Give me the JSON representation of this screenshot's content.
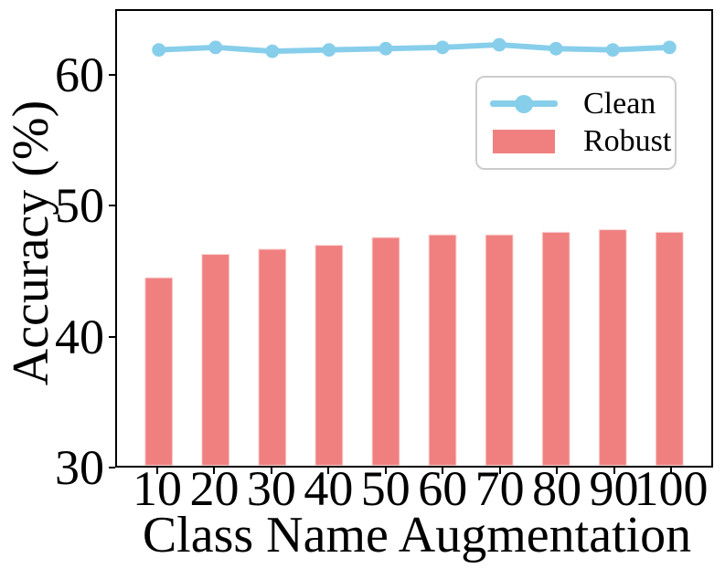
{
  "chart_data": {
    "type": "bar",
    "subtype": "bar-with-line-overlay",
    "categories": [
      10,
      20,
      30,
      40,
      50,
      60,
      70,
      80,
      90,
      100
    ],
    "series": [
      {
        "name": "Clean",
        "type": "line",
        "color": "#87CEEB",
        "values": [
          62.0,
          62.2,
          61.9,
          62.0,
          62.1,
          62.2,
          62.4,
          62.1,
          62.0,
          62.2
        ]
      },
      {
        "name": "Robust",
        "type": "bar",
        "color": "#F08080",
        "values": [
          44.5,
          46.3,
          46.7,
          47.0,
          47.6,
          47.8,
          47.8,
          48.0,
          48.2,
          48.0
        ]
      }
    ],
    "title": "",
    "xlabel": "Class Name Augmentation",
    "ylabel": "Accuracy (%)",
    "ylim": [
      30,
      65
    ],
    "yticks": [
      30,
      40,
      50,
      60
    ],
    "grid": false,
    "legend_position": "upper-right-inside"
  },
  "colors": {
    "background": "#ffffff",
    "axis": "#000000",
    "text": "#000000",
    "legend_border": "#cccccc",
    "clean_line": "#87CEEB",
    "robust_bar": "#F08080"
  }
}
